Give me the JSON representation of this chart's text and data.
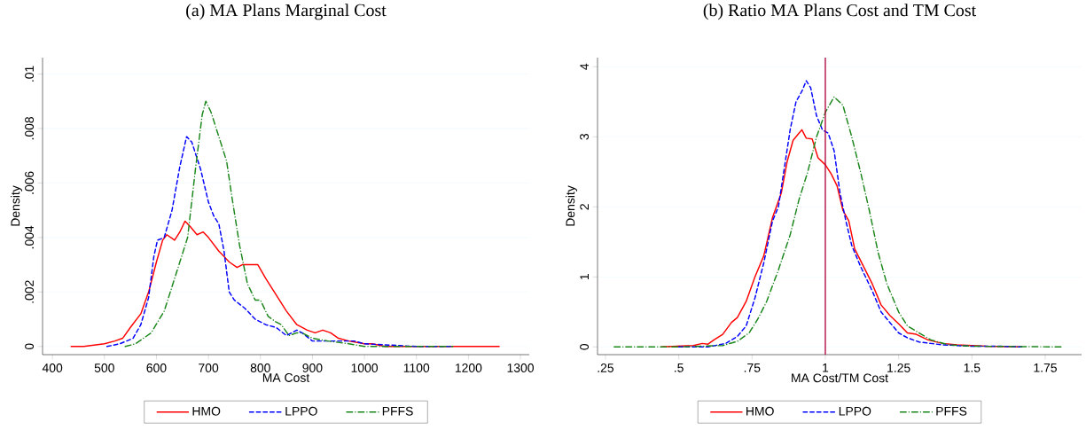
{
  "chart_data": [
    {
      "type": "line",
      "title": "(a) MA Plans Marginal Cost",
      "xlabel": "MA Cost",
      "ylabel": "Density",
      "xlim": [
        381,
        1317
      ],
      "ylim": [
        -0.0003,
        0.0106
      ],
      "xticks": [
        400,
        500,
        600,
        700,
        800,
        900,
        1000,
        1100,
        1200,
        1300
      ],
      "yticks": [
        {
          "value": 0,
          "label": "0"
        },
        {
          "value": 0.002,
          "label": ".002"
        },
        {
          "value": 0.004,
          "label": ".004"
        },
        {
          "value": 0.006,
          "label": ".006"
        },
        {
          "value": 0.008,
          "label": ".008"
        },
        {
          "value": 0.01,
          "label": ".01"
        }
      ],
      "grid": "y",
      "legend": "bottom",
      "series": [
        {
          "name": "HMO",
          "color": "#ff0000",
          "line_style": "solid",
          "x": [
            435,
            460,
            500,
            520,
            535,
            550,
            570,
            585,
            600,
            612,
            620,
            635,
            645,
            655,
            665,
            678,
            690,
            700,
            720,
            740,
            755,
            765,
            780,
            795,
            810,
            830,
            850,
            870,
            890,
            905,
            920,
            935,
            950,
            970,
            1000,
            1015,
            1040,
            1100,
            1260
          ],
          "values": [
            0,
            0,
            0.0001,
            0.0002,
            0.0003,
            0.0007,
            0.0012,
            0.002,
            0.0031,
            0.0039,
            0.0041,
            0.0039,
            0.0042,
            0.0046,
            0.0044,
            0.0041,
            0.0042,
            0.004,
            0.0035,
            0.0031,
            0.0029,
            0.003,
            0.003,
            0.003,
            0.0025,
            0.0019,
            0.0013,
            0.0008,
            0.0006,
            0.0005,
            0.0006,
            0.0005,
            0.0003,
            0.0002,
            0.0001,
            0.0001,
            0,
            0,
            0
          ]
        },
        {
          "name": "LPPO",
          "color": "#0000ff",
          "line_style": "dashed",
          "x": [
            505,
            530,
            555,
            570,
            585,
            595,
            602,
            615,
            630,
            645,
            658,
            668,
            685,
            700,
            710,
            720,
            730,
            740,
            750,
            770,
            790,
            810,
            830,
            850,
            870,
            880,
            900,
            920,
            950,
            980,
            1000,
            1100,
            1168
          ],
          "values": [
            0,
            0.0001,
            0.0003,
            0.0008,
            0.0018,
            0.0033,
            0.0039,
            0.004,
            0.005,
            0.0066,
            0.0077,
            0.0075,
            0.0065,
            0.0053,
            0.0048,
            0.0045,
            0.0035,
            0.002,
            0.0017,
            0.0014,
            0.001,
            0.0008,
            0.0007,
            0.0004,
            0.0006,
            0.0005,
            0.0002,
            0.0002,
            0.0002,
            0.0002,
            0.0001,
            0,
            0
          ]
        },
        {
          "name": "PFFS",
          "color": "#1a861a",
          "line_style": "dashdot",
          "x": [
            540,
            560,
            590,
            615,
            635,
            660,
            675,
            688,
            695,
            705,
            715,
            725,
            735,
            745,
            760,
            775,
            790,
            800,
            815,
            830,
            840,
            855,
            870,
            880,
            900,
            930,
            970,
            1000,
            1170
          ],
          "values": [
            0,
            0.0001,
            0.0005,
            0.0013,
            0.0025,
            0.004,
            0.0065,
            0.0085,
            0.009,
            0.0086,
            0.008,
            0.0074,
            0.0068,
            0.0055,
            0.0037,
            0.0023,
            0.0017,
            0.0017,
            0.0011,
            0.0009,
            0.0008,
            0.0004,
            0.0005,
            0.0005,
            0.0003,
            0.0002,
            0.0001,
            0,
            0
          ]
        }
      ]
    },
    {
      "type": "line",
      "title": "(b) Ratio MA Plans Cost and TM Cost",
      "xlabel": "MA Cost/TM Cost",
      "ylabel": "Density",
      "xlim": [
        0.223,
        1.874
      ],
      "ylim": [
        -0.11,
        4.13
      ],
      "xticks": [
        {
          "value": 0.25,
          "label": ".25"
        },
        {
          "value": 0.5,
          "label": ".5"
        },
        {
          "value": 0.75,
          "label": ".75"
        },
        1,
        1.25,
        1.5,
        1.75
      ],
      "yticks": [
        0,
        1,
        2,
        3,
        4
      ],
      "grid": "y",
      "legend": "bottom",
      "ref_lines": [
        {
          "axis": "x",
          "value": 1,
          "color": "#b0003a"
        }
      ],
      "series": [
        {
          "name": "HMO",
          "color": "#ff0000",
          "line_style": "solid",
          "x": [
            0.44,
            0.55,
            0.58,
            0.6,
            0.62,
            0.65,
            0.68,
            0.7,
            0.73,
            0.76,
            0.79,
            0.82,
            0.85,
            0.87,
            0.89,
            0.91,
            0.92,
            0.935,
            0.955,
            0.975,
            1.0,
            1.02,
            1.04,
            1.06,
            1.08,
            1.1,
            1.13,
            1.16,
            1.19,
            1.22,
            1.25,
            1.28,
            1.31,
            1.35,
            1.4,
            1.45,
            1.55,
            1.67
          ],
          "values": [
            0,
            0.02,
            0.05,
            0.04,
            0.1,
            0.18,
            0.35,
            0.42,
            0.65,
            1.0,
            1.3,
            1.85,
            2.2,
            2.65,
            2.95,
            3.05,
            3.1,
            2.98,
            2.97,
            2.7,
            2.6,
            2.47,
            2.3,
            1.95,
            1.8,
            1.4,
            1.15,
            0.9,
            0.6,
            0.45,
            0.33,
            0.2,
            0.18,
            0.1,
            0.05,
            0.03,
            0.01,
            0
          ]
        },
        {
          "name": "LPPO",
          "color": "#0000ff",
          "line_style": "dashed",
          "x": [
            0.5,
            0.6,
            0.66,
            0.7,
            0.73,
            0.76,
            0.79,
            0.82,
            0.84,
            0.86,
            0.88,
            0.9,
            0.92,
            0.935,
            0.95,
            0.97,
            0.99,
            1.01,
            1.03,
            1.05,
            1.07,
            1.09,
            1.12,
            1.16,
            1.19,
            1.22,
            1.25,
            1.28,
            1.32,
            1.36,
            1.4,
            1.5,
            1.6,
            1.67
          ],
          "values": [
            0,
            0,
            0.05,
            0.15,
            0.3,
            0.7,
            1.2,
            1.8,
            2.0,
            2.55,
            3.1,
            3.5,
            3.65,
            3.8,
            3.7,
            3.3,
            3.1,
            3.05,
            2.8,
            2.2,
            1.8,
            1.45,
            1.15,
            0.8,
            0.5,
            0.35,
            0.2,
            0.13,
            0.07,
            0.05,
            0.03,
            0.01,
            0.01,
            0
          ]
        },
        {
          "name": "PFFS",
          "color": "#1a861a",
          "line_style": "dashdot",
          "x": [
            0.28,
            0.5,
            0.65,
            0.7,
            0.74,
            0.77,
            0.8,
            0.84,
            0.88,
            0.91,
            0.94,
            0.97,
            1.0,
            1.03,
            1.06,
            1.09,
            1.12,
            1.15,
            1.18,
            1.21,
            1.25,
            1.28,
            1.32,
            1.36,
            1.42,
            1.5,
            1.81
          ],
          "values": [
            0,
            0,
            0.02,
            0.08,
            0.2,
            0.4,
            0.65,
            1.1,
            1.6,
            2.1,
            2.5,
            3.0,
            3.35,
            3.57,
            3.45,
            3.0,
            2.5,
            1.95,
            1.35,
            0.9,
            0.5,
            0.3,
            0.2,
            0.1,
            0.03,
            0.01,
            0
          ]
        }
      ]
    }
  ]
}
